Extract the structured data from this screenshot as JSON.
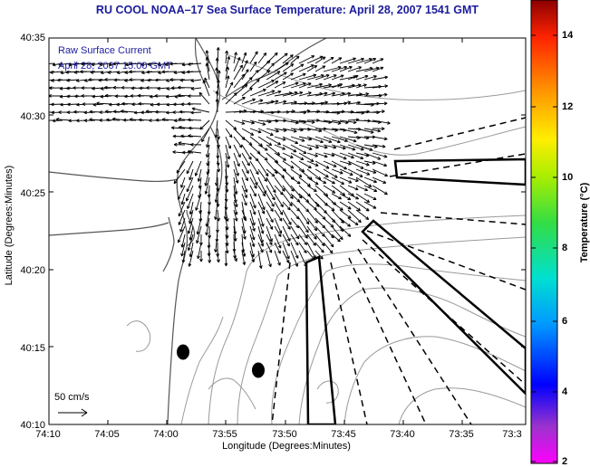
{
  "title": "RU COOL  NOAA–17  Sea Surface Temperature:  April 28, 2007 1541 GMT",
  "legend": {
    "line1": "Raw Surface Current",
    "line2": "April 28, 2007 15:00 GMT"
  },
  "scale_label": "50 cm/s",
  "colorbar": {
    "label": "Temperature (°C)",
    "ticks": [
      "2",
      "4",
      "6",
      "8",
      "10",
      "12",
      "14"
    ],
    "range": [
      2,
      15
    ]
  },
  "chart_data": {
    "type": "map",
    "xlabel": "Longitude (Degrees:Minutes)",
    "ylabel": "Latitude (Degrees:Minutes)",
    "x_ticks": [
      "74:10",
      "74:05",
      "74:00",
      "73:55",
      "73:50",
      "73:45",
      "73:40",
      "73:35",
      "73:3"
    ],
    "y_ticks": [
      "40:35",
      "40:30",
      "40:25",
      "40:20",
      "40:15",
      "40:10"
    ],
    "xlim_minutes_west": [
      10,
      30
    ],
    "ylim_minutes_north": [
      10,
      35
    ],
    "grid": false
  },
  "colors": {
    "title": "#1c1c9c",
    "coast": "#666666",
    "frame": "#000000"
  }
}
